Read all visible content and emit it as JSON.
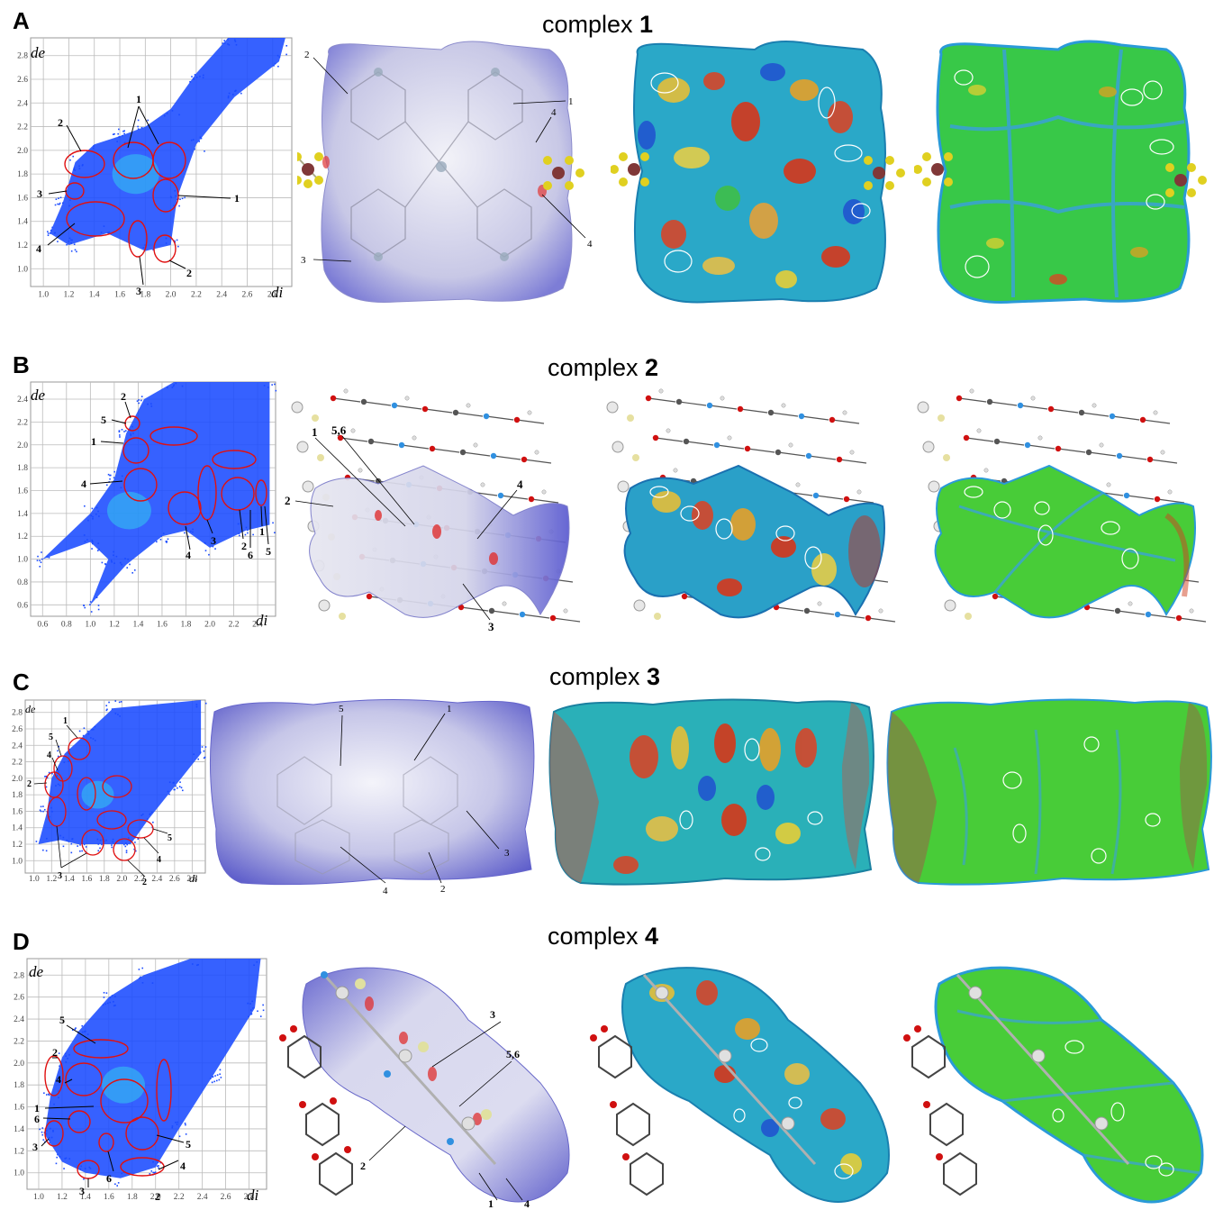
{
  "panels": [
    {
      "letter": "A",
      "title_prefix": "complex ",
      "title_number": "1",
      "plot": {
        "axis_x": "di",
        "axis_y": "de",
        "x_ticks": [
          "1.0",
          "1.2",
          "1.4",
          "1.6",
          "1.8",
          "2.0",
          "2.2",
          "2.4",
          "2.6",
          "2.8"
        ],
        "y_ticks": [
          "1.0",
          "1.2",
          "1.4",
          "1.6",
          "1.8",
          "2.0",
          "2.2",
          "2.4",
          "2.6",
          "2.8"
        ],
        "x_range": [
          0.9,
          2.95
        ],
        "y_range": [
          0.85,
          2.95
        ],
        "labels": [
          "1",
          "2",
          "3",
          "4",
          "1",
          "2",
          "3"
        ]
      },
      "surface_labels": [
        "2",
        "1",
        "4",
        "3",
        "4"
      ]
    },
    {
      "letter": "B",
      "title_prefix": "complex ",
      "title_number": "2",
      "plot": {
        "axis_x": "di",
        "axis_y": "de",
        "x_ticks": [
          "0.6",
          "0.8",
          "1.0",
          "1.2",
          "1.4",
          "1.6",
          "1.8",
          "2.0",
          "2.2",
          "2.4"
        ],
        "y_ticks": [
          "0.6",
          "0.8",
          "1.0",
          "1.2",
          "1.4",
          "1.6",
          "1.8",
          "2.0",
          "2.2",
          "2.4"
        ],
        "x_range": [
          0.5,
          2.55
        ],
        "y_range": [
          0.5,
          2.55
        ],
        "labels": [
          "2",
          "5",
          "1",
          "4",
          "4",
          "3",
          "2",
          "6",
          "1",
          "5"
        ]
      },
      "surface_labels": [
        "1",
        "5,6",
        "2",
        "4",
        "3"
      ]
    },
    {
      "letter": "C",
      "title_prefix": "complex ",
      "title_number": "3",
      "plot": {
        "axis_x": "di",
        "axis_y": "de",
        "x_ticks": [
          "1.0",
          "1.2",
          "1.4",
          "1.6",
          "1.8",
          "2.0",
          "2.2",
          "2.4",
          "2.6",
          "2.8"
        ],
        "y_ticks": [
          "1.0",
          "1.2",
          "1.4",
          "1.6",
          "1.8",
          "2.0",
          "2.2",
          "2.4",
          "2.6",
          "2.8"
        ],
        "x_range": [
          0.9,
          2.95
        ],
        "y_range": [
          0.85,
          2.95
        ],
        "labels": [
          "1",
          "5",
          "4",
          "2",
          "3",
          "2",
          "4",
          "5"
        ]
      },
      "surface_labels": [
        "5",
        "1",
        "3",
        "4",
        "2"
      ]
    },
    {
      "letter": "D",
      "title_prefix": "complex ",
      "title_number": "4",
      "plot": {
        "axis_x": "di",
        "axis_y": "de",
        "x_ticks": [
          "1.0",
          "1.2",
          "1.4",
          "1.6",
          "1.8",
          "2.0",
          "2.2",
          "2.4",
          "2.6",
          "2.8"
        ],
        "y_ticks": [
          "1.0",
          "1.2",
          "1.4",
          "1.6",
          "1.8",
          "2.0",
          "2.2",
          "2.4",
          "2.6",
          "2.8"
        ],
        "x_range": [
          0.9,
          2.95
        ],
        "y_range": [
          0.85,
          2.95
        ],
        "labels": [
          "5",
          "2",
          "4",
          "1",
          "6",
          "3",
          "3",
          "6",
          "2",
          "4",
          "5"
        ]
      },
      "surface_labels": [
        "3",
        "5,6",
        "2",
        "1",
        "4"
      ]
    }
  ],
  "colors": {
    "fingerprint_blue": "#1a4bff",
    "fingerprint_cyan": "#33ccee",
    "ellipse_red": "#e01010",
    "dnorm_white": "#e8e8f2",
    "dnorm_blue": "#7070d8",
    "shape_index_red": "#e03010",
    "shape_index_green": "#30c030",
    "curvedness_green": "#40d040",
    "curvedness_blue": "#2080e0"
  }
}
